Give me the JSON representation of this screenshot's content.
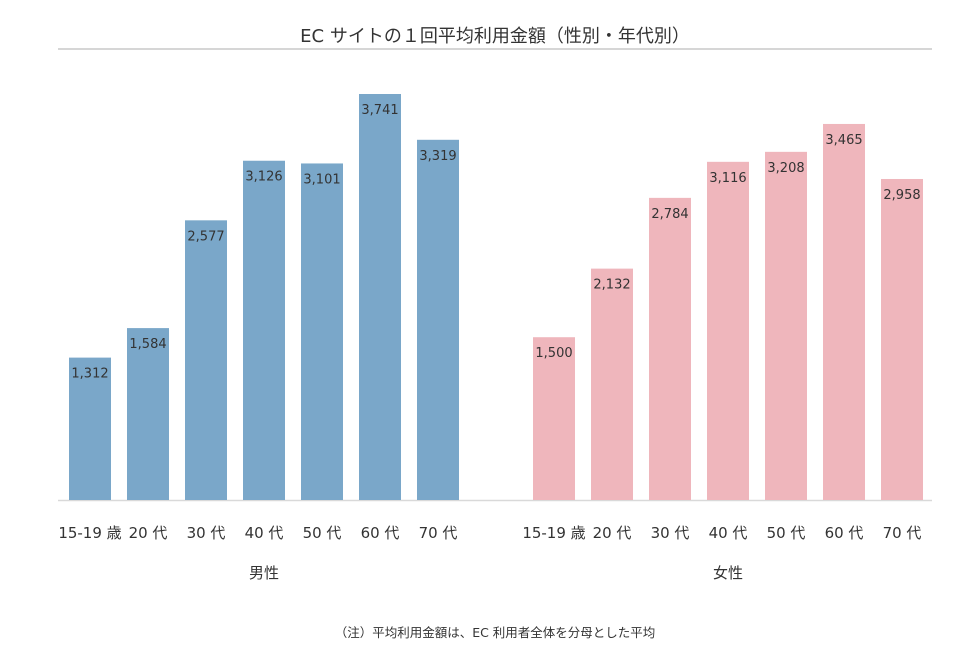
{
  "chart_data": [
    {
      "type": "bar",
      "group_label": "男性",
      "categories": [
        "15-19 歳",
        "20 代",
        "30 代",
        "40 代",
        "50 代",
        "60 代",
        "70 代"
      ],
      "values": [
        1312,
        1584,
        2577,
        3126,
        3101,
        3741,
        3319
      ],
      "labels": [
        "1,312",
        "1,584",
        "2,577",
        "3,126",
        "3,101",
        "3,741",
        "3,319"
      ],
      "color": "#7aa7c9"
    },
    {
      "type": "bar",
      "group_label": "女性",
      "categories": [
        "15-19 歳",
        "20 代",
        "30 代",
        "40 代",
        "50 代",
        "60 代",
        "70 代"
      ],
      "values": [
        1500,
        2132,
        2784,
        3116,
        3208,
        3465,
        2958
      ],
      "labels": [
        "1,500",
        "2,132",
        "2,784",
        "3,116",
        "3,208",
        "3,465",
        "2,958"
      ],
      "color": "#efb6bc"
    }
  ],
  "title": "EC サイトの１回平均利用金額（性別・年代別）",
  "footnote": "（注）平均利用金額は、EC 利用者全体を分母とした平均",
  "grid": false,
  "ylim": [
    0,
    3741
  ]
}
